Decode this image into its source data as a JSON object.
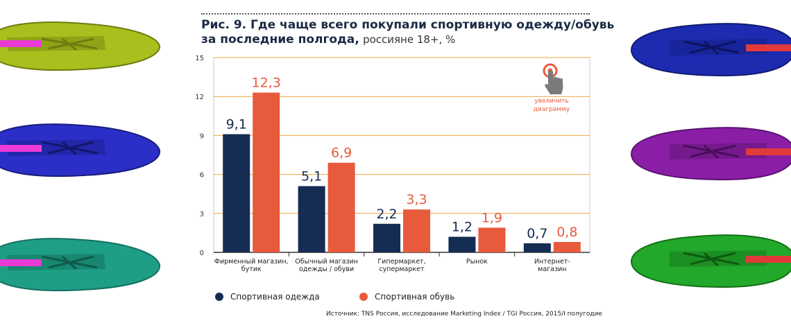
{
  "title": {
    "bold": "Рис. 9. Где чаще всего покупали спортивную одежду/обувь за последние полгода,",
    "subtitle": "россияне 18+, %"
  },
  "zoom_hint": {
    "line1": "увеличить",
    "line2": "диаграмму"
  },
  "colors": {
    "clothing": "#152d52",
    "shoes": "#e85a3c",
    "grid": "#f0a43a",
    "plot_border": "#c8c8c8"
  },
  "legend": [
    {
      "label": "Спортивная одежда",
      "color": "#152d52"
    },
    {
      "label": "Спортивная обувь",
      "color": "#e85a3c"
    }
  ],
  "source": "Источник: TNS Россия, исследование Marketing Index / TGI Россия, 2015/I полугодие",
  "chart_data": {
    "type": "bar",
    "categories": [
      [
        "Фирменный магазин,",
        "бутик"
      ],
      [
        "Обычный магазин",
        "одежды / обуви"
      ],
      [
        "Гипермаркет,",
        "супермаркет"
      ],
      [
        "Рынок"
      ],
      [
        "Интернет-",
        "магазин"
      ]
    ],
    "series": [
      {
        "name": "Спортивная одежда",
        "values": [
          9.1,
          5.1,
          2.2,
          1.2,
          0.7
        ],
        "labels": [
          "9,1",
          "5,1",
          "2,2",
          "1,2",
          "0,7"
        ]
      },
      {
        "name": "Спортивная обувь",
        "values": [
          12.3,
          6.9,
          3.3,
          1.9,
          0.8
        ],
        "labels": [
          "12,3",
          "6,9",
          "3,3",
          "1,9",
          "0,8"
        ]
      }
    ],
    "ylim": [
      0,
      15
    ],
    "yticks": [
      0,
      3,
      6,
      9,
      12,
      15
    ],
    "ytick_labels": [
      "0",
      "3",
      "6",
      "9",
      "12",
      "15"
    ],
    "grid": true,
    "legend_position": "bottom"
  }
}
